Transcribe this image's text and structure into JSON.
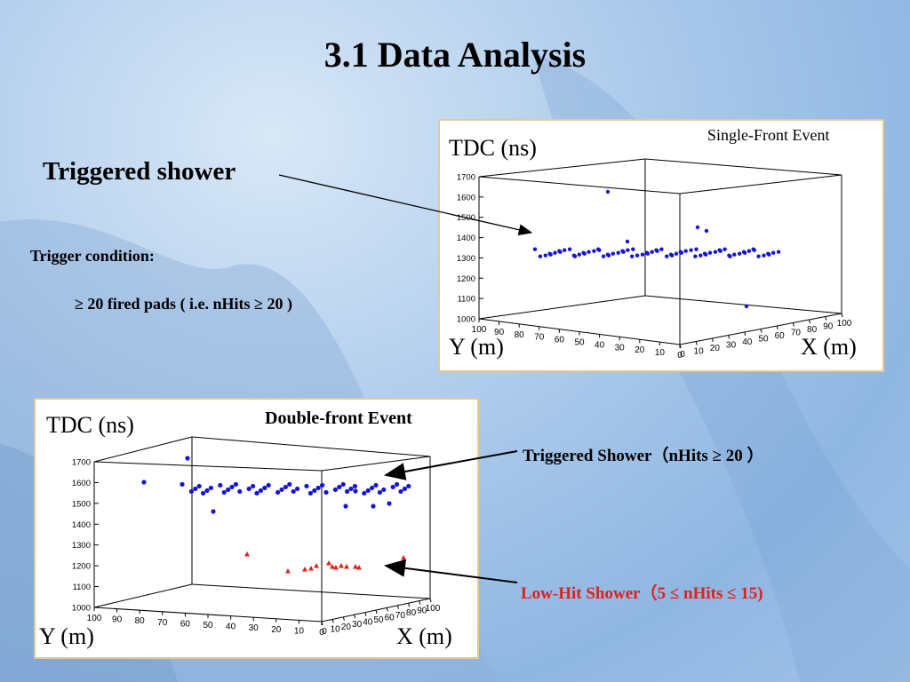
{
  "slide": {
    "title": "3.1 Data Analysis",
    "triggered_shower": "Triggered shower",
    "trigger_condition": "Trigger condition:",
    "trigger_rule": "≥ 20 fired pads  ( i.e.  nHits ≥ 20 )"
  },
  "plot_single": {
    "event_label": "Single-Front Event",
    "z_label": "TDC (ns)",
    "y_label": "Y (m)",
    "x_label": "X (m)",
    "z_ticks": [
      "1700",
      "1600",
      "1500",
      "1400",
      "1300",
      "1200",
      "1100",
      "1000"
    ],
    "y_ticks": [
      "100",
      "90",
      "80",
      "70",
      "60",
      "50",
      "40",
      "30",
      "20",
      "10",
      "0"
    ],
    "x_ticks": [
      "0",
      "10",
      "20",
      "30",
      "40",
      "50",
      "60",
      "70",
      "80",
      "90",
      "100"
    ]
  },
  "plot_double": {
    "event_label": "Double-front Event",
    "z_label": "TDC (ns)",
    "y_label": "Y (m)",
    "x_label": "X (m)",
    "z_ticks": [
      "1700",
      "1600",
      "1500",
      "1400",
      "1300",
      "1200",
      "1100",
      "1000"
    ],
    "y_ticks": [
      "100",
      "90",
      "80",
      "70",
      "60",
      "50",
      "40",
      "30",
      "20",
      "10",
      "0"
    ],
    "x_ticks": [
      "0",
      "10",
      "20",
      "30",
      "40",
      "50",
      "60",
      "70",
      "80",
      "90",
      "100"
    ]
  },
  "annotations": {
    "triggered_shower": "Triggered Shower（nHits ≥ 20 ）",
    "low_hit_shower": "Low-Hit Shower（5 ≤ nHits ≤ 15)"
  },
  "colors": {
    "triggered": "#1414d8",
    "low_hit": "#e0201a",
    "panel_border": "#e6c98d"
  }
}
